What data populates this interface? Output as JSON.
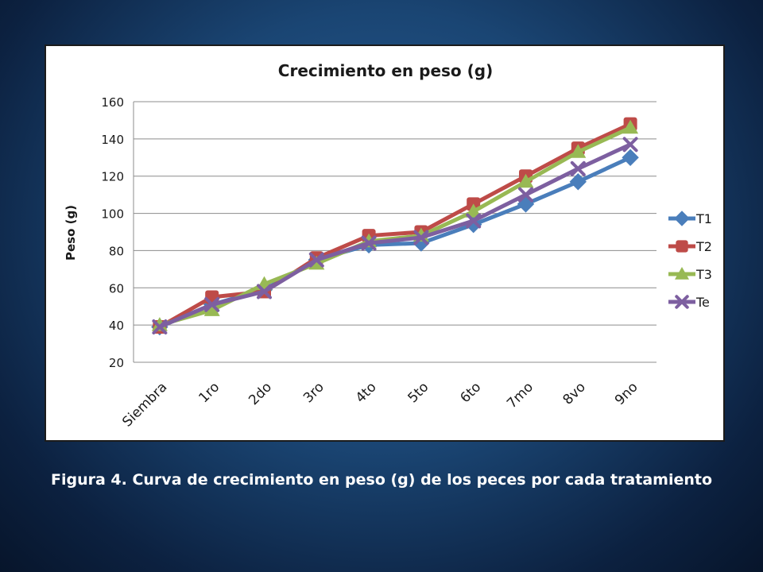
{
  "caption": "Figura 4. Curva de crecimiento en peso (g) de los peces por cada tratamiento",
  "chart_data": {
    "type": "line",
    "title": "Crecimiento en peso (g)",
    "ylabel": "Peso (g)",
    "xlabel": "",
    "ylim": [
      20,
      160
    ],
    "yticks": [
      20,
      40,
      60,
      80,
      100,
      120,
      140,
      160
    ],
    "grid": "horizontal",
    "legend_position": "right",
    "categories": [
      "Siembra",
      "1ro",
      "2do",
      "3ro",
      "4to",
      "5to",
      "6to",
      "7mo",
      "8vo",
      "9no"
    ],
    "series": [
      {
        "name": "T1",
        "color": "#4a7ebb",
        "marker": "diamond",
        "values": [
          39,
          51,
          59,
          75,
          83,
          84,
          94,
          105,
          117,
          130
        ]
      },
      {
        "name": "T2",
        "color": "#be4b48",
        "marker": "square",
        "values": [
          39,
          55,
          58,
          76,
          88,
          90,
          105,
          120,
          135,
          148
        ]
      },
      {
        "name": "T3",
        "color": "#98b954",
        "marker": "triangle",
        "values": [
          40,
          48,
          62,
          73,
          85,
          88,
          101,
          117,
          133,
          146
        ]
      },
      {
        "name": "Te",
        "color": "#7d5fa0",
        "marker": "x",
        "values": [
          39,
          51,
          58,
          75,
          84,
          87,
          96,
          110,
          124,
          137
        ]
      }
    ]
  }
}
